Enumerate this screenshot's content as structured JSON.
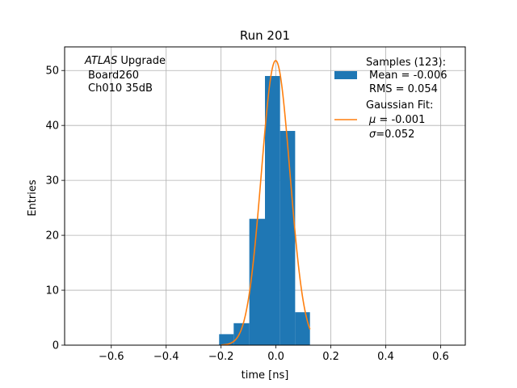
{
  "chart_data": {
    "type": "bar",
    "title": "Run 201",
    "xlabel": "time [ns]",
    "ylabel": "Entries",
    "xlim": [
      -0.77,
      0.69
    ],
    "ylim": [
      0,
      54.3
    ],
    "grid": true,
    "x_ticks": [
      -0.6,
      -0.4,
      -0.2,
      0.0,
      0.2,
      0.4,
      0.6
    ],
    "x_tick_labels": [
      "−0.6",
      "−0.4",
      "−0.2",
      "0.0",
      "0.2",
      "0.4",
      "0.6"
    ],
    "y_ticks": [
      0,
      10,
      20,
      30,
      40,
      50
    ],
    "y_tick_labels": [
      "0",
      "10",
      "20",
      "30",
      "40",
      "50"
    ],
    "bin_edges": [
      -0.207,
      -0.154,
      -0.097,
      -0.04,
      0.015,
      0.07,
      0.124
    ],
    "counts": [
      2,
      4,
      23,
      49,
      39,
      6
    ],
    "bar_color": "#1f77b4",
    "fit": {
      "mu": -0.001,
      "sigma": 0.052,
      "amplitude": 51.8,
      "range": [
        -0.2,
        0.124
      ],
      "color": "#ff7f0e"
    },
    "annotation": {
      "italic_part": "ATLAS",
      "rest_of_line1": " Upgrade",
      "line2": "Board260",
      "line3": "Ch010 35dB"
    },
    "legend": {
      "position": "top-right",
      "samples": {
        "line1": "Samples (123):",
        "line2": "Mean = -0.006",
        "line3": "RMS = 0.054"
      },
      "fit": {
        "line1": "Gaussian Fit:",
        "mu_symbol": "μ",
        "mu_text": " = -0.001",
        "sigma_symbol": "σ",
        "sigma_text": "=0.052"
      }
    }
  }
}
